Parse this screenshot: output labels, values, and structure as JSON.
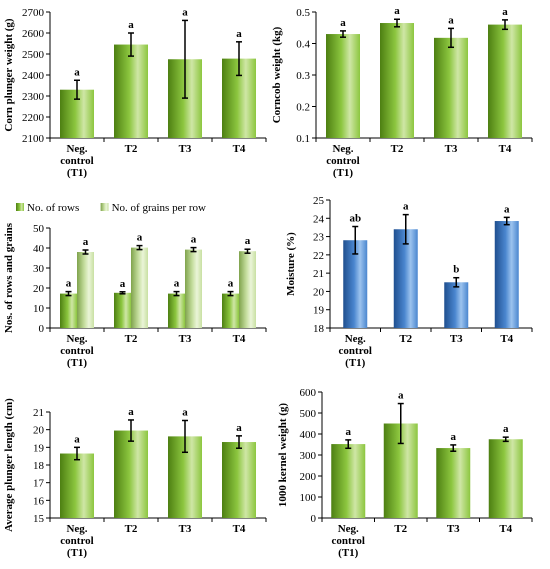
{
  "figure": {
    "colors": {
      "green_dark": "#4d7f12",
      "green_mid": "#8cc63f",
      "green_light": "#cfe6a6",
      "lightgreen_dark": "#7fa34c",
      "lightgreen_mid": "#c8e0a2",
      "lightgreen_light": "#eaf5d8",
      "blue_dark": "#1f4f8f",
      "blue_mid": "#4a86cf",
      "blue_light": "#9cc3ee",
      "axis": "#000000"
    }
  },
  "chart_data": [
    {
      "id": "corn-plunger-weight",
      "type": "bar",
      "ylabel": "Corn plunger weight (g)",
      "categories": [
        "Neg. control (T1)",
        "T2",
        "T3",
        "T4"
      ],
      "series": [
        {
          "values": [
            2330,
            2545,
            2475,
            2478
          ],
          "errors": [
            45,
            55,
            185,
            80
          ],
          "letters": [
            "a",
            "a",
            "a",
            "a"
          ]
        }
      ],
      "ylim": [
        2100,
        2700
      ],
      "yticks": [
        2100,
        2200,
        2300,
        2400,
        2500,
        2600,
        2700
      ],
      "color": "green"
    },
    {
      "id": "corncob-weight",
      "type": "bar",
      "ylabel": "Corncob weight (kg)",
      "categories": [
        "Neg. control (T1)",
        "T2",
        "T3",
        "T4"
      ],
      "series": [
        {
          "values": [
            0.43,
            0.465,
            0.418,
            0.46
          ],
          "errors": [
            0.01,
            0.012,
            0.03,
            0.015
          ],
          "letters": [
            "a",
            "a",
            "a",
            "a"
          ]
        }
      ],
      "ylim": [
        0.1,
        0.5
      ],
      "yticks": [
        0.1,
        0.2,
        0.3,
        0.4,
        0.5
      ],
      "color": "green"
    },
    {
      "id": "rows-and-grains",
      "type": "bar",
      "ylabel": "Nos. of rows and grains",
      "categories": [
        "Neg. control (T1)",
        "T2",
        "T3",
        "T4"
      ],
      "legend_position": "top",
      "series": [
        {
          "name": "No. of rows",
          "values": [
            17.2,
            17.6,
            17.2,
            17.2
          ],
          "errors": [
            1,
            0.5,
            1,
            1
          ],
          "letters": [
            "a",
            "a",
            "a",
            "a"
          ],
          "color": "green"
        },
        {
          "name": "No. of grains per row",
          "values": [
            38,
            40.2,
            39.2,
            38.4
          ],
          "errors": [
            1,
            1,
            1,
            1
          ],
          "letters": [
            "a",
            "a",
            "a",
            "a"
          ],
          "color": "lightgreen"
        }
      ],
      "ylim": [
        0,
        50
      ],
      "yticks": [
        0,
        10,
        20,
        30,
        40,
        50
      ]
    },
    {
      "id": "moisture",
      "type": "bar",
      "ylabel": "Moisture (%)",
      "categories": [
        "Neg. control (T1)",
        "T2",
        "T3",
        "T4"
      ],
      "series": [
        {
          "values": [
            22.8,
            23.4,
            20.5,
            23.85
          ],
          "errors": [
            0.75,
            0.8,
            0.25,
            0.2
          ],
          "letters": [
            "ab",
            "a",
            "b",
            "a"
          ]
        }
      ],
      "ylim": [
        18,
        25
      ],
      "yticks": [
        18,
        19,
        20,
        21,
        22,
        23,
        24,
        25
      ],
      "color": "blue"
    },
    {
      "id": "average-plunger-length",
      "type": "bar",
      "ylabel": "Average plunger length (cm)",
      "categories": [
        "Neg. control (T1)",
        "T2",
        "T3",
        "T4"
      ],
      "series": [
        {
          "values": [
            18.65,
            19.95,
            19.62,
            19.3
          ],
          "errors": [
            0.35,
            0.6,
            0.9,
            0.35
          ],
          "letters": [
            "a",
            "a",
            "a",
            "a"
          ]
        }
      ],
      "ylim": [
        15,
        21
      ],
      "yticks": [
        15,
        16,
        17,
        18,
        19,
        20,
        21
      ],
      "color": "green"
    },
    {
      "id": "kernel-weight",
      "type": "bar",
      "ylabel": "1000 kernel weight (g)",
      "categories": [
        "Neg. control (T1)",
        "T2",
        "T3",
        "T4"
      ],
      "series": [
        {
          "values": [
            352,
            450,
            333,
            375
          ],
          "errors": [
            20,
            95,
            15,
            10
          ],
          "letters": [
            "a",
            "a",
            "a",
            "a"
          ]
        }
      ],
      "ylim": [
        0,
        600
      ],
      "yticks": [
        0,
        100,
        200,
        300,
        400,
        500,
        600
      ],
      "color": "green"
    }
  ]
}
